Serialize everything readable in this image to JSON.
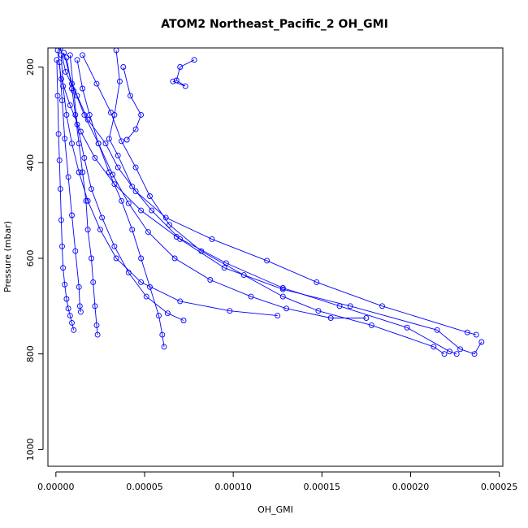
{
  "chart_data": {
    "type": "line",
    "title": "ATOM2 Northeast_Pacific_2 OH_GMI",
    "xlabel": "OH_GMI",
    "ylabel": "Pressure (mbar)",
    "xlim": [
      -4.5e-06,
      0.000252
    ],
    "ylim": [
      1035,
      160
    ],
    "y_reversed": true,
    "grid": false,
    "legend": "none",
    "marker": "open-circle",
    "color": "#0000ff",
    "x_ticks": [
      0,
      5e-05,
      0.0001,
      0.00015,
      0.0002,
      0.00025
    ],
    "x_tick_labels": [
      "0.00000",
      "0.00005",
      "0.00010",
      "0.00015",
      "0.00020",
      "0.00025"
    ],
    "y_ticks": [
      200,
      400,
      600,
      800,
      1000
    ],
    "y_tick_labels": [
      "200",
      "400",
      "600",
      "800",
      "1000"
    ],
    "series": [
      {
        "x": [
          2.5e-06,
          5.5e-06,
          1.2e-05,
          1.8e-05,
          2.8e-05,
          3.5e-05,
          4.5e-05,
          6.2e-05,
          8.8e-05,
          0.000119,
          0.000147,
          0.000184,
          0.000232,
          0.000237
        ],
        "y": [
          160,
          210,
          260,
          310,
          360,
          410,
          460,
          515,
          560,
          605,
          650,
          700,
          755,
          760
        ]
      },
      {
        "x": [
          1e-06,
          3e-06,
          8e-06,
          1.4e-05,
          2.2e-05,
          3.3e-05,
          4.8e-05,
          6.8e-05,
          9.6e-05,
          0.000128,
          0.00016,
          0.000198,
          0.000222,
          0.000226
        ],
        "y": [
          165,
          225,
          280,
          335,
          390,
          445,
          500,
          555,
          610,
          662,
          700,
          745,
          795,
          800
        ]
      },
      {
        "x": [
          4.5e-06,
          9e-06,
          1.6e-05,
          2.4e-05,
          3.2e-05,
          4.1e-05,
          5.2e-05,
          6.7e-05,
          8.7e-05,
          0.00011,
          0.00013,
          0.000155,
          0.000175
        ],
        "y": [
          170,
          235,
          300,
          360,
          425,
          485,
          545,
          600,
          645,
          680,
          705,
          725,
          725
        ]
      },
      {
        "x": [
          3e-06,
          4e-06,
          6e-06,
          9e-06,
          1.3e-05,
          1.8e-05,
          2.5e-05,
          3.4e-05,
          4.8e-05,
          7e-05,
          9.8e-05,
          0.000125
        ],
        "y": [
          175,
          240,
          300,
          360,
          420,
          480,
          540,
          600,
          650,
          690,
          710,
          720
        ]
      },
      {
        "x": [
          3.4e-05,
          3.6e-05,
          3.3e-05,
          3e-05,
          3.5e-05,
          4.3e-05,
          5.4e-05,
          7e-05,
          9.5e-05,
          0.000128,
          0.000166,
          0.000215,
          0.000228,
          0.000236,
          0.00024
        ],
        "y": [
          165,
          230,
          300,
          350,
          385,
          450,
          500,
          560,
          620,
          665,
          700,
          750,
          790,
          800,
          775
        ]
      },
      {
        "x": [
          1.5e-05,
          2.3e-05,
          3.1e-05,
          3.7e-05,
          4.5e-05,
          5.3e-05,
          6.4e-05,
          8.2e-05,
          0.000106,
          0.000128,
          0.000148,
          0.000178,
          0.000213,
          0.000219
        ],
        "y": [
          175,
          235,
          295,
          355,
          410,
          470,
          530,
          585,
          635,
          680,
          710,
          740,
          785,
          800
        ]
      },
      {
        "x": [
          7.8e-05,
          7e-05,
          6.8e-05,
          7.3e-05,
          6.6e-05
        ],
        "y": [
          185,
          200,
          228,
          240,
          230
        ]
      },
      {
        "x": [
          3.8e-05,
          4.2e-05,
          4.8e-05,
          4.5e-05,
          4e-05
        ],
        "y": [
          200,
          260,
          300,
          330,
          352
        ]
      },
      {
        "x": [
          5e-07,
          1e-06,
          1.5e-06,
          2e-06,
          2.5e-06,
          3e-06,
          3.5e-06,
          4e-06,
          5e-06,
          6e-06,
          7e-06,
          8e-06,
          9e-06,
          1e-05
        ],
        "y": [
          185,
          260,
          340,
          395,
          455,
          520,
          575,
          620,
          655,
          685,
          705,
          720,
          735,
          750
        ]
      },
      {
        "x": [
          6e-06,
          9e-06,
          1.1e-05,
          1.3e-05,
          1.5e-05,
          1.7e-05,
          1.8e-05,
          2e-05,
          2.1e-05,
          2.2e-05,
          2.3e-05,
          2.35e-05
        ],
        "y": [
          180,
          245,
          300,
          360,
          420,
          480,
          540,
          600,
          650,
          700,
          740,
          760
        ]
      },
      {
        "x": [
          1.2e-05,
          1.5e-05,
          1.9e-05,
          2.4e-05,
          3e-05,
          3.7e-05,
          4.3e-05,
          4.8e-05,
          5.3e-05,
          5.8e-05,
          6e-05,
          6.1e-05
        ],
        "y": [
          185,
          245,
          300,
          360,
          420,
          480,
          540,
          600,
          660,
          720,
          760,
          785
        ]
      },
      {
        "x": [
          2e-06,
          3.5e-06,
          5e-06,
          7e-06,
          9e-06,
          1.1e-05,
          1.3e-05,
          1.35e-05,
          1.4e-05
        ],
        "y": [
          190,
          270,
          350,
          430,
          510,
          585,
          660,
          700,
          712
        ]
      },
      {
        "x": [
          8e-06,
          1e-05,
          1.2e-05,
          1.6e-05,
          2e-05,
          2.6e-05,
          3.3e-05,
          4.1e-05,
          5.1e-05,
          6.3e-05,
          7.2e-05
        ],
        "y": [
          175,
          250,
          320,
          390,
          455,
          515,
          575,
          630,
          680,
          715,
          730
        ]
      }
    ]
  }
}
